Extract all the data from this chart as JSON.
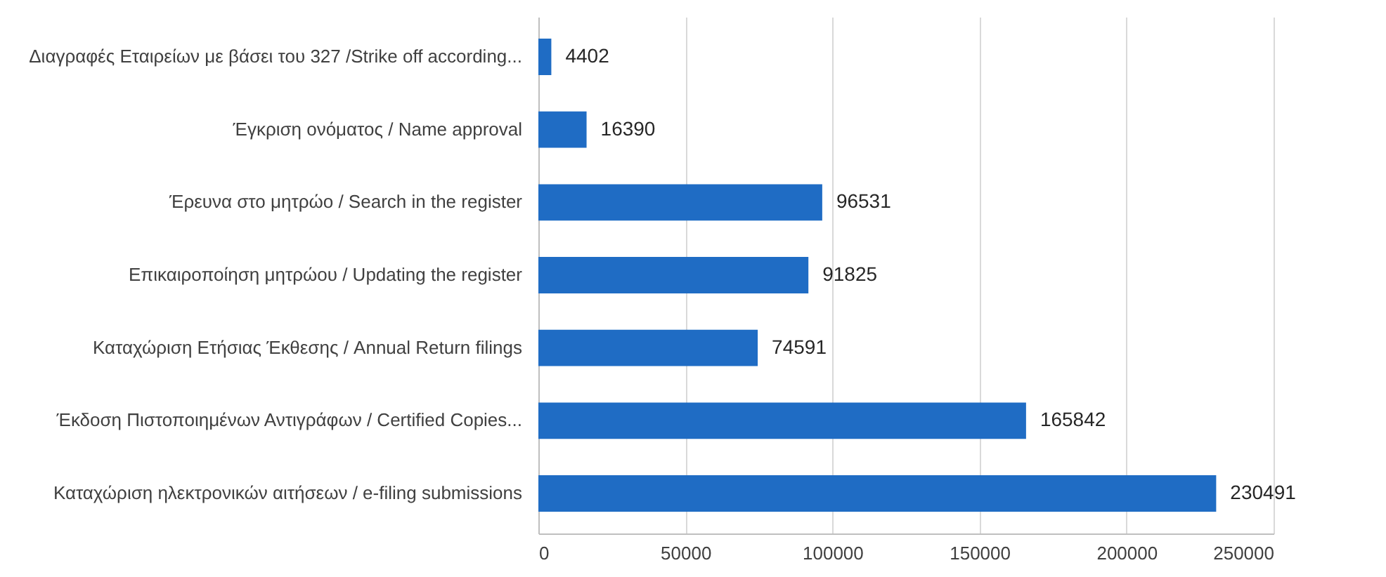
{
  "chart_data": {
    "type": "bar",
    "orientation": "horizontal",
    "categories": [
      "Διαγραφές Εταιρείων με βάσει του 327 /Strike off according...",
      "Έγκριση ονόματος / Name approval",
      "Έρευνα στο μητρώο / Search in the register",
      "Επικαιροποίηση μητρώου / Updating the register",
      "Καταχώριση Ετήσιας Έκθεσης / Annual Return filings",
      "Έκδοση Πιστοποιημένων Αντιγράφων / Certified Copies...",
      "Καταχώριση ηλεκτρονικών αιτήσεων / e-filing submissions"
    ],
    "values": [
      4402,
      16390,
      96531,
      91825,
      74591,
      165842,
      230491
    ],
    "color": "#1f6cc4",
    "xlim": [
      0,
      250000
    ],
    "xticks": [
      0,
      50000,
      100000,
      150000,
      200000,
      250000
    ],
    "grid": "x",
    "data_labels": true
  }
}
